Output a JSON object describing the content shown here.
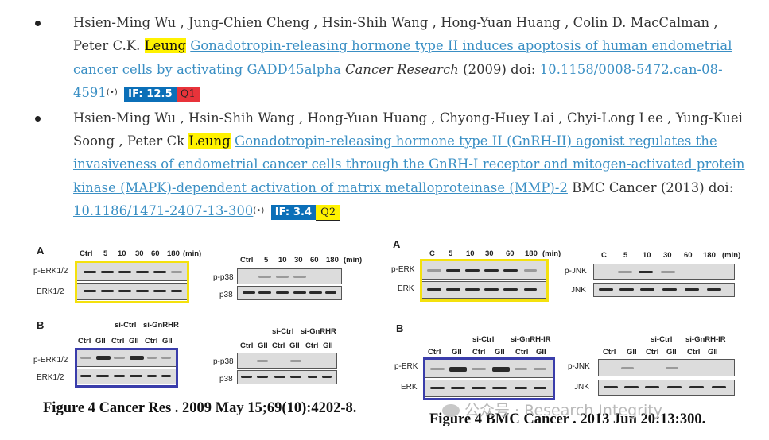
{
  "references": [
    {
      "authors": "Hsien-Ming Wu , Jung-Chien Cheng , Hsin-Shih Wang , Hong-Yuan Huang , Colin D. MacCalman , Peter C.K. ",
      "highlight": "Leung",
      "title": "Gonadotropin-releasing hormone type II induces apoptosis of human endometrial cancer cells by activating GADD45alpha",
      "journal": "Cancer Research",
      "year": "(2009) doi:",
      "doi": "10.1158/0008-5472.can-08-4591",
      "if": "IF: 12.5",
      "quartile": "Q1"
    },
    {
      "authors": "Hsien-Ming Wu , Hsin-Shih Wang , Hong-Yuan Huang , Chyong-Huey Lai , Chyi-Long Lee , Yung-Kuei Soong , Peter Ck ",
      "highlight": "Leung",
      "title": "Gonadotropin-releasing hormone type II (GnRH-II) agonist regulates the invasiveness of endometrial cancer cells through the GnRH-I receptor and mitogen-activated protein kinase (MAPK)-dependent activation of matrix metalloproteinase (MMP)-2",
      "journal": "BMC Cancer",
      "year": "(2013) doi:",
      "doi": "10.1186/1471-2407-13-300",
      "if": "IF: 3.4",
      "quartile": "Q2"
    }
  ],
  "figure_left": {
    "panel_a": "A",
    "panel_b": "B",
    "lanes_a": [
      "Ctrl",
      "5",
      "10",
      "30",
      "60",
      "180",
      "(min)"
    ],
    "lanes_b": [
      "Ctrl",
      "GII",
      "Ctrl",
      "GII",
      "Ctrl",
      "GII"
    ],
    "si_ctrl": "si-Ctrl",
    "si_gnrhr": "si-GnRHR",
    "rows": [
      "p-ERK1/2",
      "ERK1/2",
      "p-p38",
      "p38"
    ],
    "caption": "Figure 4 Cancer Res . 2009 May 15;69(10):4202-8."
  },
  "figure_right": {
    "panel_a": "A",
    "panel_b": "B",
    "lanes_a": [
      "C",
      "5",
      "10",
      "30",
      "60",
      "180",
      "(min)"
    ],
    "lanes_b": [
      "Ctrl",
      "GII",
      "Ctrl",
      "GII",
      "Ctrl",
      "GII"
    ],
    "si_ctrl": "si-Ctrl",
    "si_gnrhir": "si-GnRH-IR",
    "rows": [
      "p-ERK",
      "ERK",
      "p-JNK",
      "JNK"
    ],
    "caption": "Figure 4 BMC Cancer . 2013 Jun 20:13:300."
  },
  "watermark": "公众号 · Research Integrity",
  "colors": {
    "link": "#3a8fc4",
    "highlight": "#fff200",
    "if_badge": "#0b6fb8",
    "q1": "#e8333a",
    "frame_yellow": "#f4e10d",
    "frame_blue": "#3a3dab"
  }
}
